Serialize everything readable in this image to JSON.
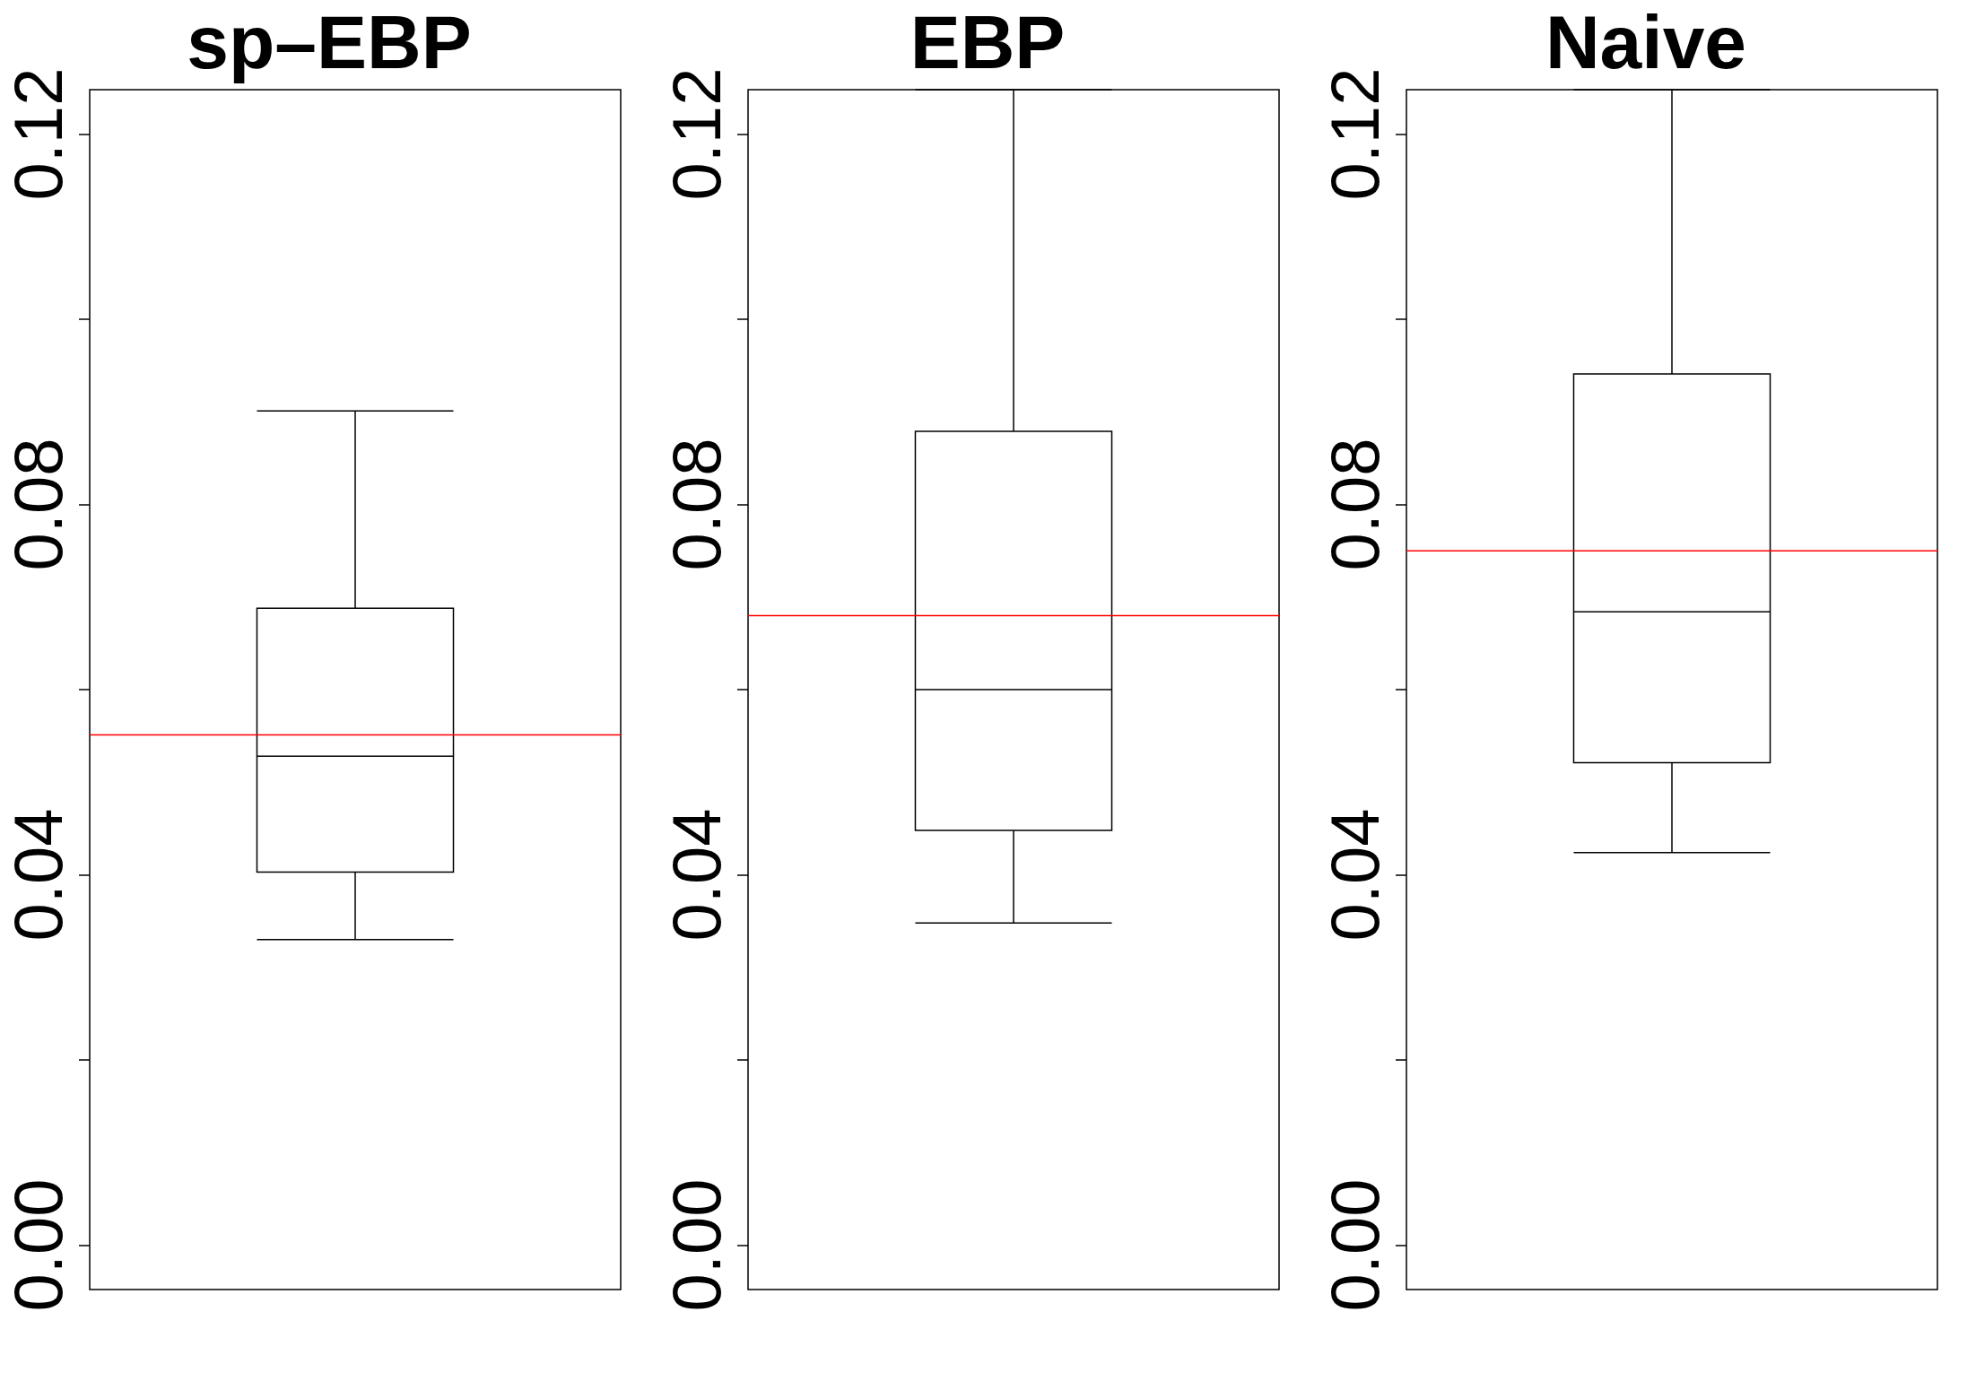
{
  "chart_data": [
    {
      "type": "box",
      "title": "sp–EBP",
      "categories": [
        null
      ],
      "boxes": [
        {
          "low": 0.033,
          "q1": 0.0403,
          "median": 0.0528,
          "q3": 0.0688,
          "high": 0.0901
        }
      ],
      "color": "#000000",
      "ylim": [
        -0.0048,
        0.1248
      ],
      "yticks": [
        {
          "value": 0,
          "label": "0.00"
        },
        {
          "value": 0.02,
          "label": null
        },
        {
          "value": 0.04,
          "label": "0.04"
        },
        {
          "value": 0.06,
          "label": null
        },
        {
          "value": 0.08,
          "label": "0.08"
        },
        {
          "value": 0.1,
          "label": null
        },
        {
          "value": 0.12,
          "label": "0.12"
        }
      ],
      "ref_lines": [
        {
          "axis": "y",
          "value": 0.0551,
          "label": null,
          "color": "#ff0000"
        }
      ],
      "tick_labels": "y",
      "grid": false
    },
    {
      "type": "box",
      "title": "EBP",
      "categories": [
        null
      ],
      "boxes": [
        {
          "low": 0.0348,
          "q1": 0.0448,
          "median": 0.06,
          "q3": 0.0879,
          "high": 0.1248
        }
      ],
      "color": "#000000",
      "ylim": [
        -0.0048,
        0.1248
      ],
      "yticks": [
        {
          "value": 0,
          "label": "0.00"
        },
        {
          "value": 0.02,
          "label": null
        },
        {
          "value": 0.04,
          "label": "0.04"
        },
        {
          "value": 0.06,
          "label": null
        },
        {
          "value": 0.08,
          "label": "0.08"
        },
        {
          "value": 0.1,
          "label": null
        },
        {
          "value": 0.12,
          "label": "0.12"
        }
      ],
      "ref_lines": [
        {
          "axis": "y",
          "value": 0.068,
          "label": null,
          "color": "#ff0000"
        }
      ],
      "tick_labels": "y",
      "grid": false
    },
    {
      "type": "box",
      "title": "Naive",
      "categories": [
        null
      ],
      "boxes": [
        {
          "low": 0.0424,
          "q1": 0.0521,
          "median": 0.0684,
          "q3": 0.0941,
          "high": 0.1248
        }
      ],
      "color": "#000000",
      "ylim": [
        -0.0048,
        0.1248
      ],
      "yticks": [
        {
          "value": 0,
          "label": "0.00"
        },
        {
          "value": 0.02,
          "label": null
        },
        {
          "value": 0.04,
          "label": "0.04"
        },
        {
          "value": 0.06,
          "label": null
        },
        {
          "value": 0.08,
          "label": "0.08"
        },
        {
          "value": 0.1,
          "label": null
        },
        {
          "value": 0.12,
          "label": "0.12"
        }
      ],
      "ref_lines": [
        {
          "axis": "y",
          "value": 0.075,
          "label": null,
          "color": "#ff0000"
        }
      ],
      "tick_labels": "y",
      "grid": false
    }
  ]
}
